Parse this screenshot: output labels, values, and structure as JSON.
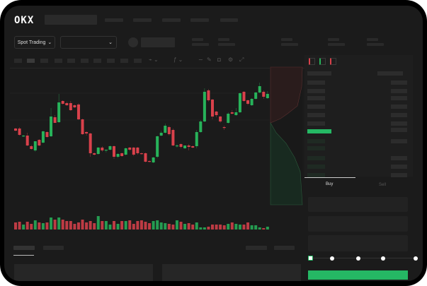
{
  "header": {
    "logo": "OKX",
    "nav_items": [
      "",
      "",
      "",
      "",
      ""
    ]
  },
  "toolbar": {
    "market_select_label": "Spot Trading",
    "market_select_chevron": "⌄",
    "pair_select_chevron": "⌄"
  },
  "chart_tools": {
    "icons": [
      "line-icon",
      "pencil-icon",
      "camera-icon",
      "settings-icon",
      "fullscreen-icon"
    ]
  },
  "trade": {
    "tabs": [
      "Buy",
      "Sell"
    ],
    "active_tab": "Buy",
    "slider_level": 0
  },
  "colors": {
    "up": "#27b35a",
    "down": "#d9414b",
    "accent": "#25b864",
    "background": "#1b1b1b"
  },
  "chart_data": {
    "type": "candlestick",
    "grid": true,
    "candles": [
      [
        68,
        69,
        64,
        65,
        10
      ],
      [
        68,
        70,
        58,
        59,
        11
      ],
      [
        57,
        59,
        56,
        58,
        7
      ],
      [
        58,
        62,
        43,
        44,
        11
      ],
      [
        43,
        45,
        38,
        39,
        8
      ],
      [
        37,
        50,
        35,
        50,
        13
      ],
      [
        52,
        53,
        43,
        44,
        10
      ],
      [
        48,
        65,
        47,
        64,
        9
      ],
      [
        63,
        64,
        55,
        56,
        10
      ],
      [
        57,
        97,
        56,
        85,
        17
      ],
      [
        84,
        87,
        76,
        76,
        14
      ],
      [
        77,
        117,
        76,
        105,
        17
      ],
      [
        107,
        108,
        102,
        103,
        14
      ],
      [
        104,
        106,
        100,
        101,
        12
      ],
      [
        104,
        107,
        93,
        94,
        12
      ],
      [
        101,
        102,
        97,
        98,
        8
      ],
      [
        102,
        104,
        80,
        81,
        10
      ],
      [
        81,
        82,
        59,
        60,
        14
      ],
      [
        63,
        64,
        58,
        61,
        10
      ],
      [
        61,
        62,
        28,
        33,
        12
      ],
      [
        33,
        34,
        30,
        31,
        9
      ],
      [
        32,
        42,
        31,
        41,
        19
      ],
      [
        41,
        43,
        35,
        37,
        12
      ],
      [
        37,
        38,
        34,
        38,
        12
      ],
      [
        38,
        44,
        37,
        43,
        7
      ],
      [
        43,
        44,
        25,
        28,
        12
      ],
      [
        28,
        33,
        26,
        32,
        8
      ],
      [
        33,
        34,
        28,
        29,
        12
      ],
      [
        31,
        41,
        30,
        40,
        12
      ],
      [
        41,
        42,
        36,
        38,
        13
      ],
      [
        41,
        42,
        29,
        31,
        8
      ],
      [
        41,
        42,
        31,
        33,
        12
      ],
      [
        33,
        34,
        31,
        32,
        13
      ],
      [
        33,
        34,
        20,
        21,
        11
      ],
      [
        22,
        23,
        20,
        21,
        9
      ],
      [
        20,
        28,
        19,
        27,
        12
      ],
      [
        28,
        58,
        26,
        57,
        13
      ],
      [
        58,
        65,
        57,
        62,
        10
      ],
      [
        62,
        75,
        61,
        72,
        9
      ],
      [
        70,
        72,
        58,
        60,
        8
      ],
      [
        66,
        68,
        43,
        44,
        7
      ],
      [
        43,
        46,
        41,
        44,
        13
      ],
      [
        46,
        47,
        40,
        42,
        11
      ],
      [
        40,
        44,
        39,
        44,
        8
      ],
      [
        44,
        46,
        37,
        42,
        9
      ],
      [
        43,
        44,
        40,
        41,
        7
      ],
      [
        43,
        66,
        40,
        63,
        10
      ],
      [
        63,
        80,
        62,
        78,
        3
      ],
      [
        78,
        125,
        77,
        120,
        3
      ],
      [
        122,
        124,
        106,
        108,
        4
      ],
      [
        109,
        110,
        81,
        85,
        7
      ],
      [
        92,
        93,
        84,
        87,
        7
      ],
      [
        85,
        86,
        76,
        78,
        7
      ],
      [
        70,
        72,
        66,
        69,
        6
      ],
      [
        76,
        91,
        75,
        89,
        8
      ],
      [
        91,
        94,
        88,
        89,
        10
      ],
      [
        87,
        97,
        86,
        91,
        8
      ],
      [
        91,
        119,
        90,
        118,
        7
      ],
      [
        120,
        121,
        106,
        107,
        7
      ],
      [
        108,
        109,
        101,
        103,
        10
      ],
      [
        101,
        111,
        100,
        110,
        6
      ],
      [
        110,
        120,
        109,
        119,
        6
      ],
      [
        119,
        133,
        118,
        128,
        3
      ],
      [
        120,
        122,
        110,
        113,
        2
      ],
      [
        111,
        121,
        110,
        117,
        4
      ]
    ]
  }
}
